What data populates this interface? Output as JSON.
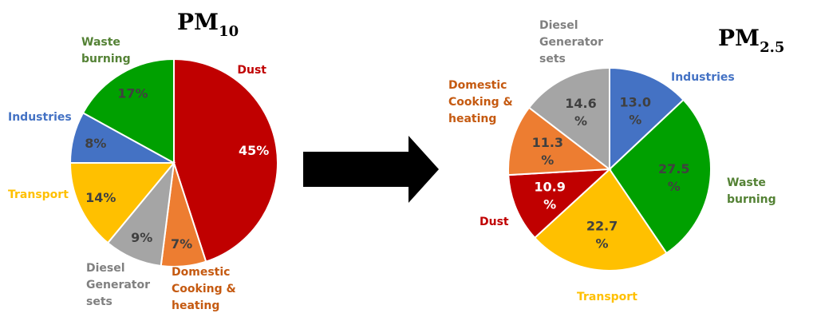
{
  "chart_data": [
    {
      "type": "pie",
      "title": "PM",
      "title_sub": "10",
      "slices": [
        {
          "label": "Dust",
          "value": 45,
          "display": "45%",
          "color": "#C00000",
          "label_color": "#C00000",
          "text_color": "#ffffff"
        },
        {
          "label": "Domestic Cooking & heating",
          "value": 7,
          "display": "7%",
          "color": "#ED7D31",
          "label_color": "#C55A11",
          "text_color": "#404040"
        },
        {
          "label": "Diesel Generator sets",
          "value": 9,
          "display": "9%",
          "color": "#A5A5A5",
          "label_color": "#808080",
          "text_color": "#404040"
        },
        {
          "label": "Transport",
          "value": 14,
          "display": "14%",
          "color": "#FFC000",
          "label_color": "#FFC000",
          "text_color": "#404040"
        },
        {
          "label": "Industries",
          "value": 8,
          "display": "8%",
          "color": "#4472C4",
          "label_color": "#4472C4",
          "text_color": "#404040"
        },
        {
          "label": "Waste burning",
          "value": 17,
          "display": "17%",
          "color": "#00A000",
          "label_color": "#548235",
          "text_color": "#404040"
        }
      ]
    },
    {
      "type": "pie",
      "title": "PM",
      "title_sub": "2.5",
      "slices": [
        {
          "label": "Industries",
          "value": 13.0,
          "display": "13.0 %",
          "color": "#4472C4",
          "label_color": "#4472C4",
          "text_color": "#404040"
        },
        {
          "label": "Waste burning",
          "value": 27.5,
          "display": "27.5 %",
          "color": "#00A000",
          "label_color": "#548235",
          "text_color": "#404040"
        },
        {
          "label": "Transport",
          "value": 22.7,
          "display": "22.7 %",
          "color": "#FFC000",
          "label_color": "#FFC000",
          "text_color": "#404040"
        },
        {
          "label": "Dust",
          "value": 10.9,
          "display": "10.9 %",
          "color": "#C00000",
          "label_color": "#C00000",
          "text_color": "#ffffff"
        },
        {
          "label": "Domestic Cooking & heating",
          "value": 11.3,
          "display": "11.3 %",
          "color": "#ED7D31",
          "label_color": "#C55A11",
          "text_color": "#404040"
        },
        {
          "label": "Diesel Generator sets",
          "value": 14.6,
          "display": "14.6 %",
          "color": "#A5A5A5",
          "label_color": "#808080",
          "text_color": "#404040"
        }
      ]
    }
  ],
  "arrow_color": "#000000"
}
